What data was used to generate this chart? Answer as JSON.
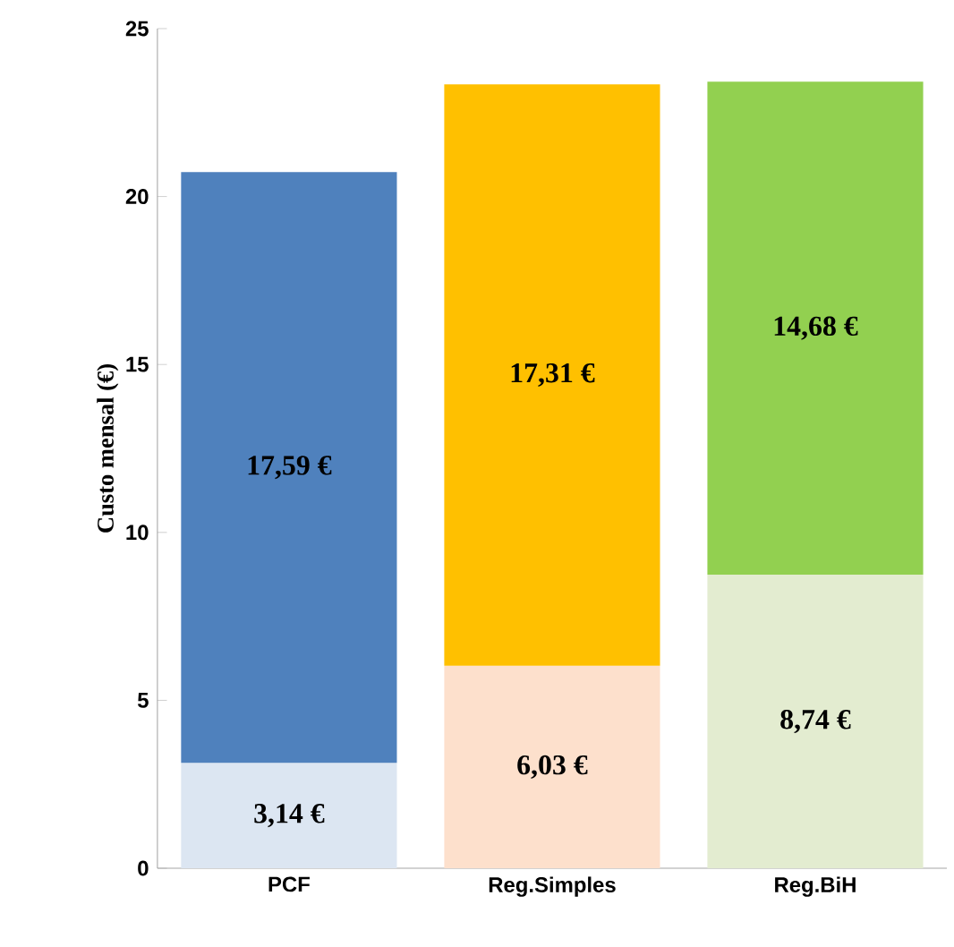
{
  "chart_data": {
    "type": "bar",
    "stacked": true,
    "categories": [
      "PCF",
      "Reg.Simples",
      "Reg.BiH"
    ],
    "ylabel": "Custo mensal (€)",
    "ylim": [
      0,
      25
    ],
    "yticks": [
      0,
      5,
      10,
      15,
      20,
      25
    ],
    "grid": false,
    "series": [
      {
        "colors": [
          "#dce6f2",
          "#fde0cc",
          "#e3ecd0"
        ],
        "values": [
          3.14,
          6.03,
          8.74
        ],
        "value_labels": [
          "3,14 €",
          "6,03 €",
          "8,74 €"
        ]
      },
      {
        "colors": [
          "#4f81bd",
          "#ffc000",
          "#92d050"
        ],
        "values": [
          17.59,
          17.31,
          14.68
        ],
        "value_labels": [
          "17,59 €",
          "17,31 €",
          "14,68 €"
        ]
      }
    ]
  }
}
